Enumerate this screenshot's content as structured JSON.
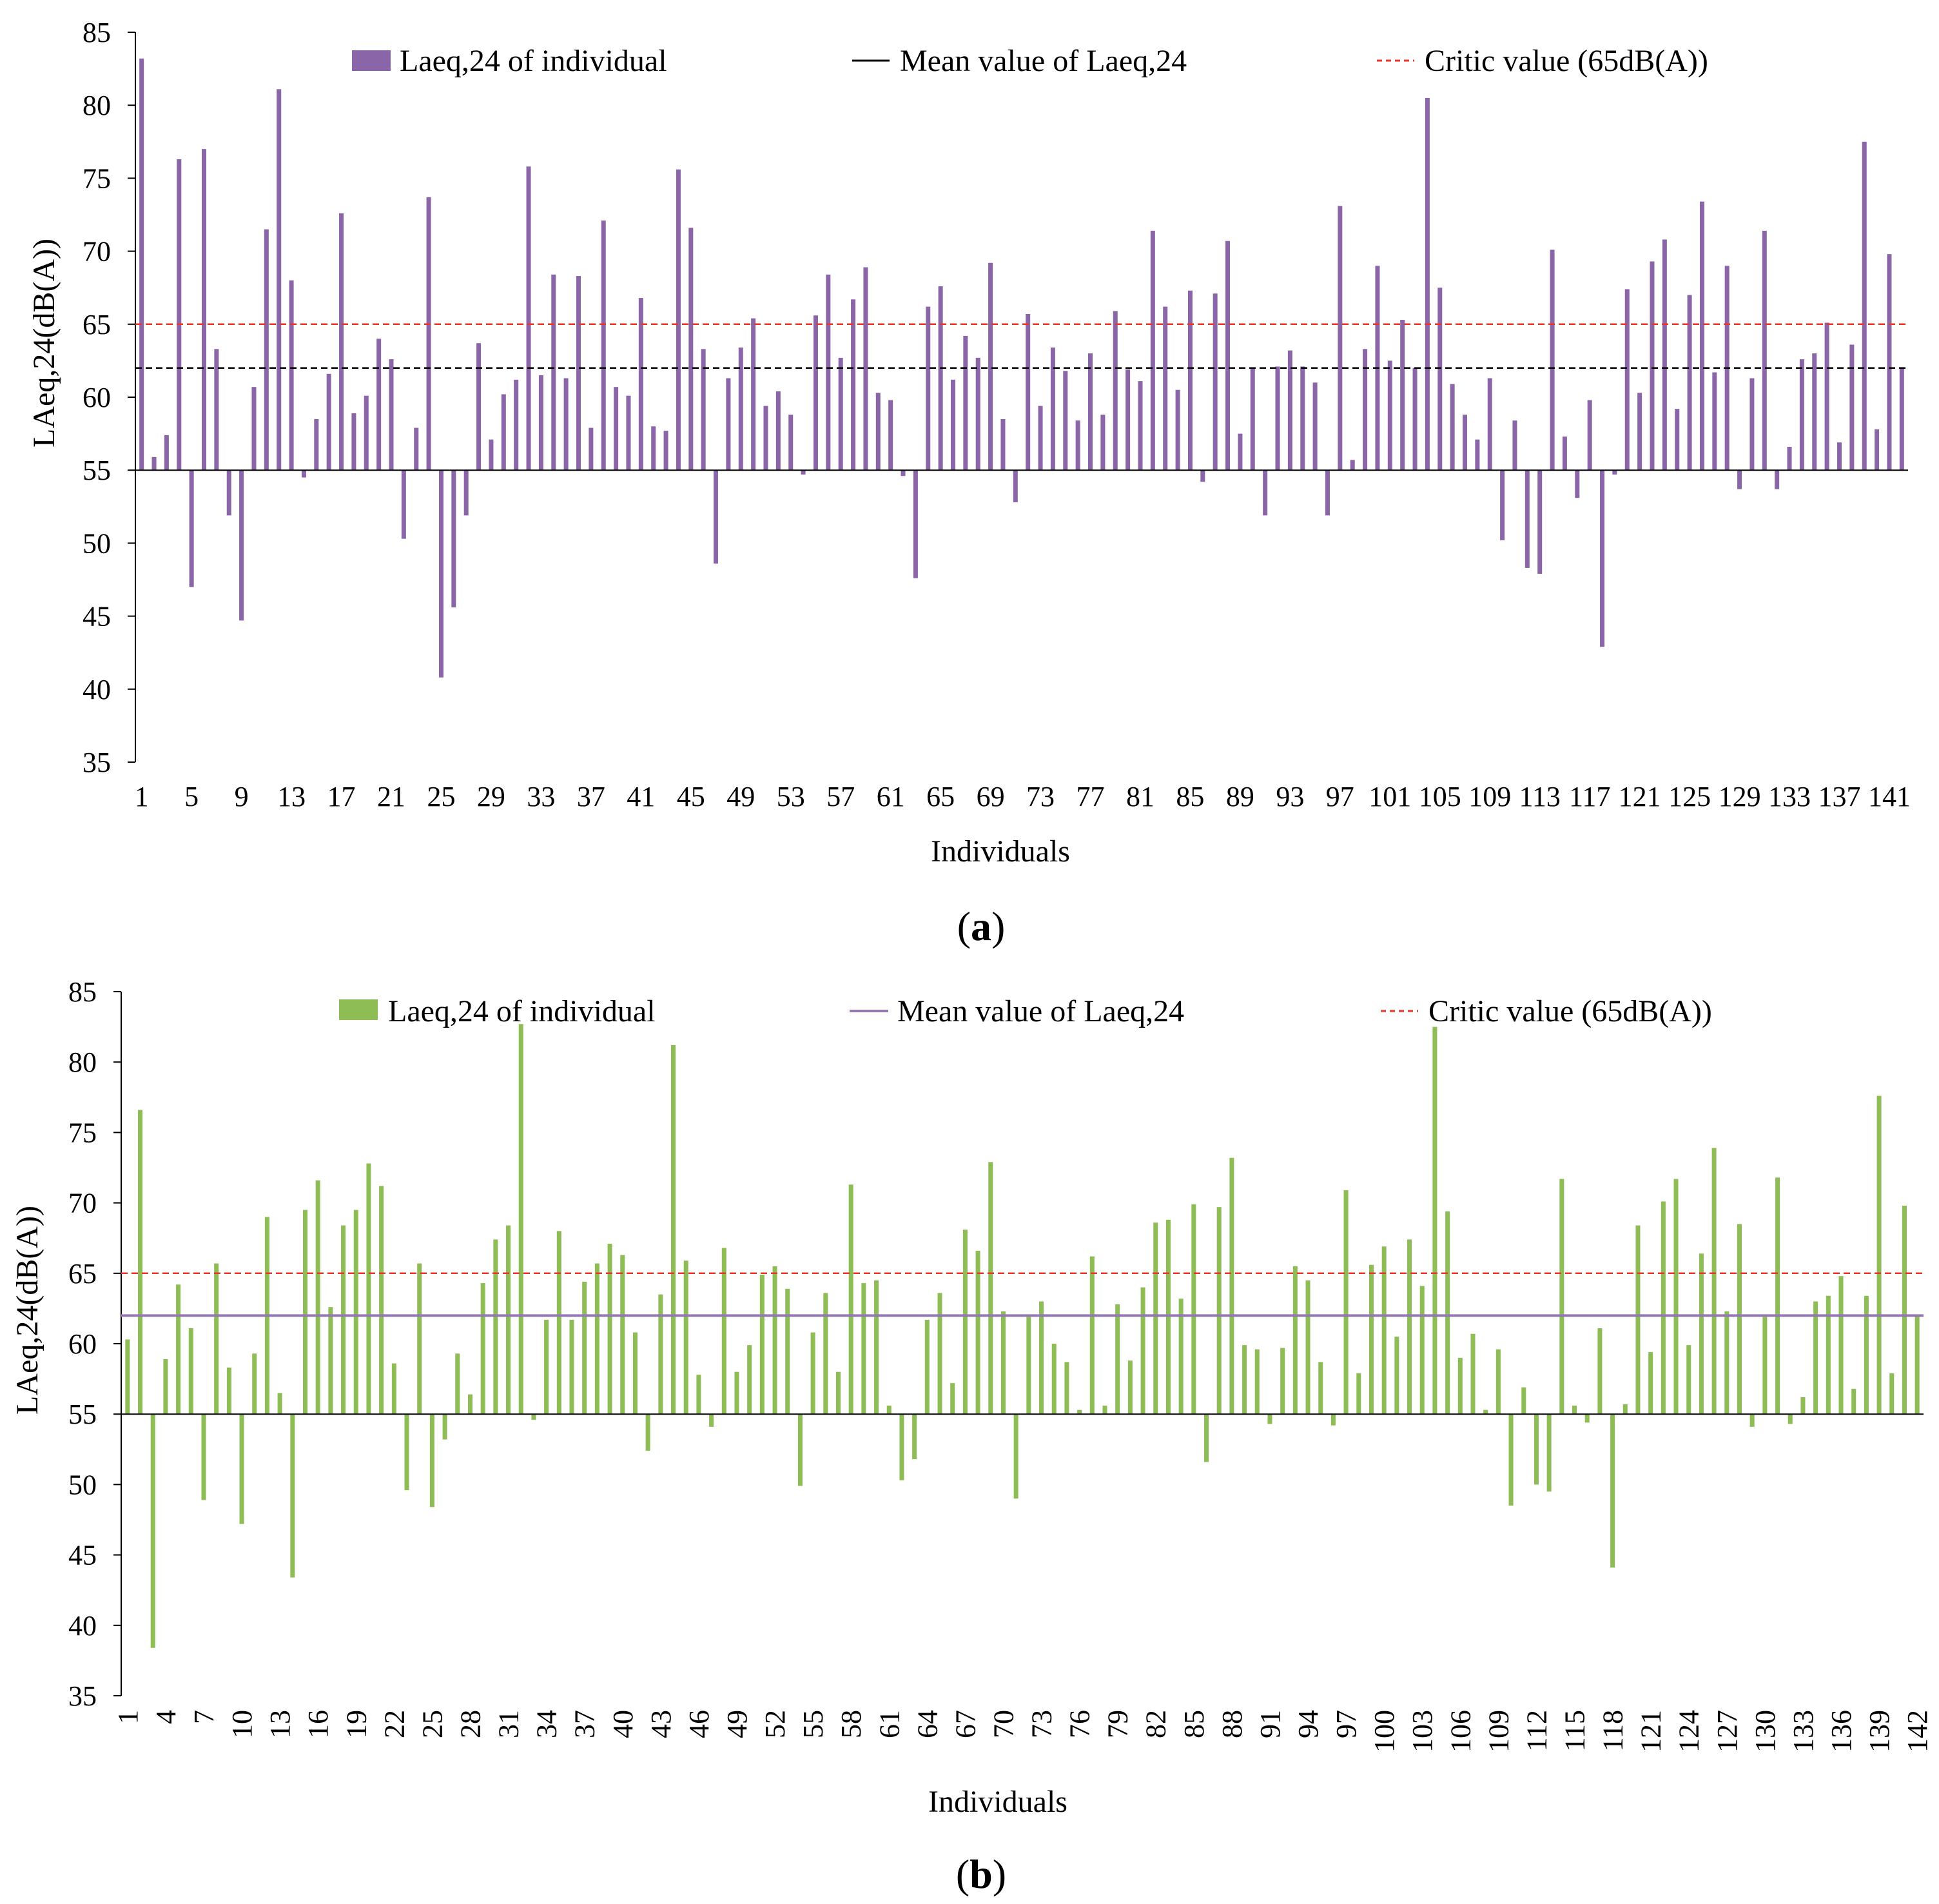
{
  "panels": [
    {
      "panel_label": "a",
      "legend": {
        "bars_label": "Laeq,24 of individual",
        "mean_label": "Mean value of Laeq,24",
        "critic_label": "Critic value (65dB(A))"
      },
      "colors": {
        "bars": "#8a66a8",
        "mean": "#000000",
        "critic": "#e8362b"
      },
      "chart_data": {
        "type": "bar",
        "title": "",
        "xlabel": "Individuals",
        "ylabel": "LAeq,24(dB(A))",
        "ylim": [
          35,
          85
        ],
        "yticks": [
          35,
          40,
          45,
          50,
          55,
          60,
          65,
          70,
          75,
          80,
          85
        ],
        "baseline": 55,
        "xtick_labels": [
          "1",
          "5",
          "9",
          "13",
          "17",
          "21",
          "25",
          "29",
          "33",
          "37",
          "41",
          "45",
          "49",
          "53",
          "57",
          "61",
          "65",
          "69",
          "73",
          "77",
          "81",
          "85",
          "89",
          "93",
          "97",
          "101",
          "105",
          "109",
          "113",
          "117",
          "121",
          "125",
          "129",
          "133",
          "137",
          "141"
        ],
        "mean_line": {
          "value": 62,
          "style": "dashed"
        },
        "critic_line": {
          "value": 65,
          "style": "dashed"
        },
        "series": [
          {
            "name": "Laeq,24 of individual",
            "values": [
              83.2,
              55.9,
              57.4,
              76.3,
              47.0,
              77.0,
              63.3,
              51.9,
              44.7,
              60.7,
              71.5,
              81.1,
              68.0,
              54.5,
              58.5,
              61.6,
              72.6,
              58.9,
              60.1,
              64.0,
              62.6,
              50.3,
              57.9,
              73.7,
              40.8,
              45.6,
              51.9,
              63.7,
              57.1,
              60.2,
              61.2,
              75.8,
              61.5,
              68.4,
              61.3,
              68.3,
              57.9,
              72.1,
              60.7,
              60.1,
              66.8,
              58.0,
              57.7,
              75.6,
              71.6,
              63.3,
              48.6,
              61.3,
              63.4,
              65.4,
              59.4,
              60.4,
              58.8,
              54.7,
              65.6,
              68.4,
              62.7,
              66.7,
              68.9,
              60.3,
              59.8,
              54.6,
              47.6,
              66.2,
              67.6,
              61.2,
              64.2,
              62.7,
              69.2,
              58.5,
              52.8,
              65.7,
              59.4,
              63.4,
              61.8,
              58.4,
              63.0,
              58.8,
              65.9,
              61.9,
              61.1,
              71.4,
              66.2,
              60.5,
              67.3,
              54.2,
              67.1,
              70.7,
              57.5,
              62.0,
              51.9,
              62.1,
              63.2,
              62.1,
              61.0,
              51.9,
              73.1,
              55.7,
              63.3,
              69.0,
              62.5,
              65.3,
              62.0,
              80.5,
              67.5,
              60.9,
              58.8,
              57.1,
              61.3,
              50.2,
              58.4,
              48.3,
              47.9,
              70.1,
              57.3,
              53.1,
              59.8,
              42.9,
              54.7,
              67.4,
              60.3,
              69.3,
              70.8,
              59.2,
              67.0,
              73.4,
              61.7,
              69.0,
              53.7,
              61.3,
              71.4,
              53.7,
              56.6,
              62.6,
              63.0,
              65.1,
              56.9,
              63.6,
              77.5,
              57.8,
              69.8,
              62.0
            ]
          }
        ]
      }
    },
    {
      "panel_label": "b",
      "legend": {
        "bars_label": "Laeq,24 of individual",
        "mean_label": "Mean value of Laeq,24",
        "critic_label": "Critic value (65dB(A))"
      },
      "colors": {
        "bars": "#8ebc55",
        "mean": "#9478b2",
        "critic": "#e8362b"
      },
      "chart_data": {
        "type": "bar",
        "title": "",
        "xlabel": "Individuals",
        "ylabel": "LAeq,24(dB(A))",
        "ylim": [
          35,
          85
        ],
        "yticks": [
          35,
          40,
          45,
          50,
          55,
          60,
          65,
          70,
          75,
          80,
          85
        ],
        "baseline": 55,
        "xtick_labels": [
          "1",
          "4",
          "7",
          "10",
          "13",
          "16",
          "19",
          "22",
          "25",
          "28",
          "31",
          "34",
          "37",
          "40",
          "43",
          "46",
          "49",
          "52",
          "55",
          "58",
          "61",
          "64",
          "67",
          "70",
          "73",
          "76",
          "79",
          "82",
          "85",
          "88",
          "91",
          "94",
          "97",
          "100",
          "103",
          "106",
          "109",
          "112",
          "115",
          "118",
          "121",
          "124",
          "127",
          "130",
          "133",
          "136",
          "139",
          "142"
        ],
        "mean_line": {
          "value": 62,
          "style": "solid"
        },
        "critic_line": {
          "value": 65,
          "style": "dashed"
        },
        "series": [
          {
            "name": "Laeq,24 of individual",
            "values": [
              60.3,
              76.6,
              38.4,
              58.9,
              64.2,
              61.1,
              48.9,
              65.7,
              58.3,
              47.2,
              59.3,
              69.0,
              56.5,
              43.4,
              69.5,
              71.6,
              62.6,
              68.4,
              69.5,
              72.8,
              71.2,
              58.6,
              49.6,
              65.7,
              48.4,
              53.2,
              59.3,
              56.4,
              64.3,
              67.4,
              68.4,
              82.7,
              54.6,
              61.7,
              68.0,
              61.7,
              64.4,
              65.7,
              67.1,
              66.3,
              60.8,
              52.4,
              63.5,
              81.2,
              65.9,
              57.8,
              54.1,
              66.8,
              58.0,
              59.9,
              64.9,
              65.5,
              63.9,
              49.9,
              60.8,
              63.6,
              58.0,
              71.3,
              64.3,
              64.5,
              55.6,
              50.3,
              51.8,
              61.7,
              63.6,
              57.2,
              68.1,
              66.6,
              72.9,
              62.3,
              49.0,
              61.9,
              63.0,
              60.0,
              58.7,
              55.3,
              66.2,
              55.6,
              62.8,
              58.8,
              64.0,
              68.6,
              68.8,
              63.2,
              69.9,
              51.6,
              69.7,
              73.2,
              59.9,
              59.6,
              54.3,
              59.7,
              65.5,
              64.5,
              58.7,
              54.2,
              70.9,
              57.9,
              65.6,
              66.9,
              60.5,
              67.4,
              64.1,
              82.5,
              69.4,
              59.0,
              60.7,
              55.3,
              59.6,
              48.5,
              56.9,
              50.0,
              49.5,
              71.7,
              55.6,
              54.4,
              61.1,
              44.1,
              55.7,
              68.4,
              59.4,
              70.1,
              71.7,
              59.9,
              66.4,
              73.9,
              62.3,
              68.5,
              54.1,
              61.9,
              71.8,
              54.3,
              56.2,
              63.0,
              63.4,
              64.8,
              56.8,
              63.4,
              77.6,
              57.9,
              69.8,
              62.0
            ]
          }
        ]
      }
    }
  ]
}
